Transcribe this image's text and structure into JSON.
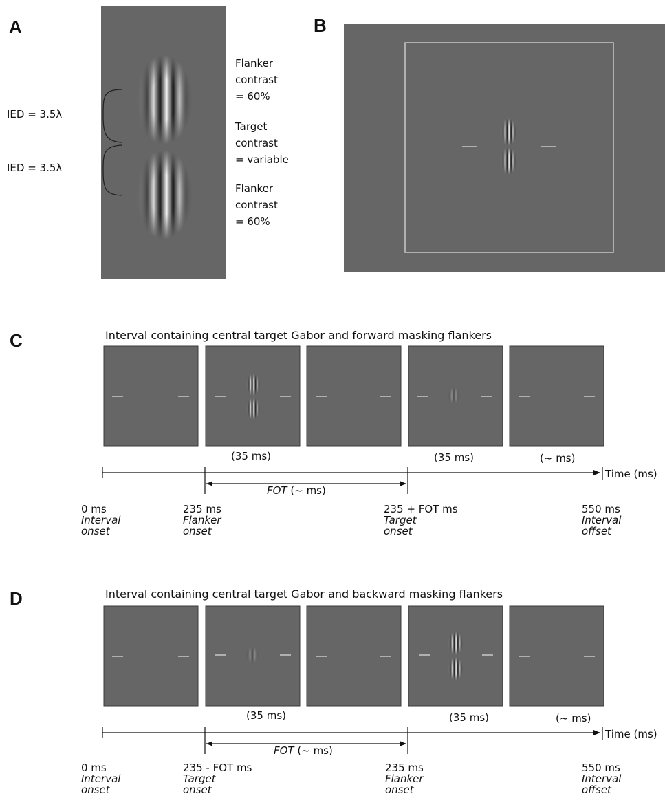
{
  "panels": {
    "A": {
      "letter": "A",
      "brackets": [
        {
          "label": "IED = 3.5λ"
        },
        {
          "label": "IED = 3.5λ"
        }
      ],
      "notes": [
        {
          "line1": "Flanker",
          "line2": "contrast",
          "line3": "= 60%"
        },
        {
          "line1": "Target",
          "line2": "contrast",
          "line3": "= variable"
        },
        {
          "line1": "Flanker",
          "line2": "contrast",
          "line3": "= 60%"
        }
      ]
    },
    "B": {
      "letter": "B"
    },
    "C": {
      "letter": "C",
      "heading": "Interval containing central target Gabor and forward masking flankers",
      "durations": [
        "(35 ms)",
        "(35 ms)",
        "(~ ms)"
      ],
      "axis_label": "Time (ms)",
      "span_label": {
        "italic": "FOT",
        "rest": " (~ ms)"
      },
      "events": [
        {
          "value": "0 ms",
          "line1": "Interval",
          "line2": "onset"
        },
        {
          "value": "235 ms",
          "line1": "Flanker",
          "line2": "onset"
        },
        {
          "value": "235 + FOT ms",
          "line1": "Target",
          "line2": "onset"
        },
        {
          "value": "550 ms",
          "line1": "Interval",
          "line2": "offset"
        }
      ]
    },
    "D": {
      "letter": "D",
      "heading": "Interval containing central target Gabor and backward masking flankers",
      "durations": [
        "(35 ms)",
        "(35 ms)",
        "(~ ms)"
      ],
      "axis_label": "Time (ms)",
      "span_label": {
        "italic": "FOT",
        "rest": " (~ ms)"
      },
      "events": [
        {
          "value": "0 ms",
          "line1": "Interval",
          "line2": "onset"
        },
        {
          "value": "235 - FOT ms",
          "line1": "Target",
          "line2": "onset"
        },
        {
          "value": "235 ms",
          "line1": "Flanker",
          "line2": "onset"
        },
        {
          "value": "550 ms",
          "line1": "Interval",
          "line2": "offset"
        }
      ]
    }
  },
  "colors": {
    "background": "#666666",
    "fixation": "#b0b0b0",
    "frame_border": "#c8c8c8"
  }
}
